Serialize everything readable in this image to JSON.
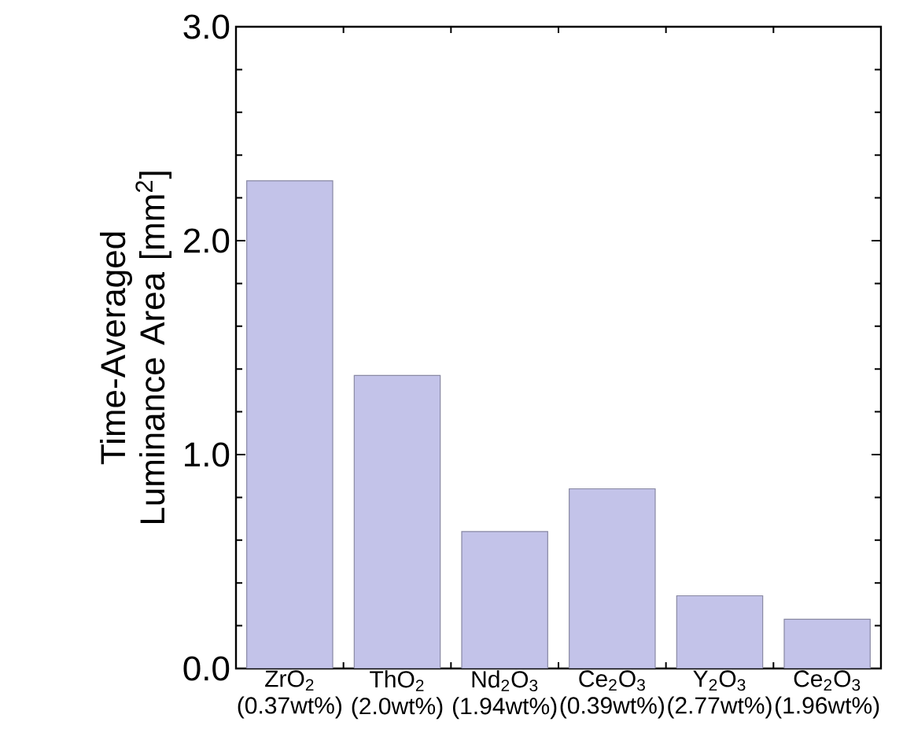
{
  "chart_data": {
    "type": "bar",
    "ylabel": "Time-Averaged Luminance Area [mm$^{2}$]",
    "categories": [
      "ZrO$_{2}$ (0.37wt%)",
      "ThO$_{2}$ (2.0wt%)",
      "Nd$_{2}$O$_{3}$ (1.94wt%)",
      "Ce$_{2}$O$_{3}$ (0.39wt%)",
      "Y$_{2}$O$_{3}$ (2.77wt%)",
      "Ce$_{2}$O$_{3}$ (1.96wt%)"
    ],
    "values": [
      2.28,
      1.37,
      0.64,
      0.84,
      0.34,
      0.23
    ],
    "color": "#c3c3e9",
    "ylim": [
      0,
      3.0
    ],
    "yticks": [
      {
        "value": 0,
        "label": "0.0"
      },
      {
        "value": 1,
        "label": "1.0"
      },
      {
        "value": 2,
        "label": "2.0"
      },
      {
        "value": 3,
        "label": "3.0"
      }
    ]
  }
}
